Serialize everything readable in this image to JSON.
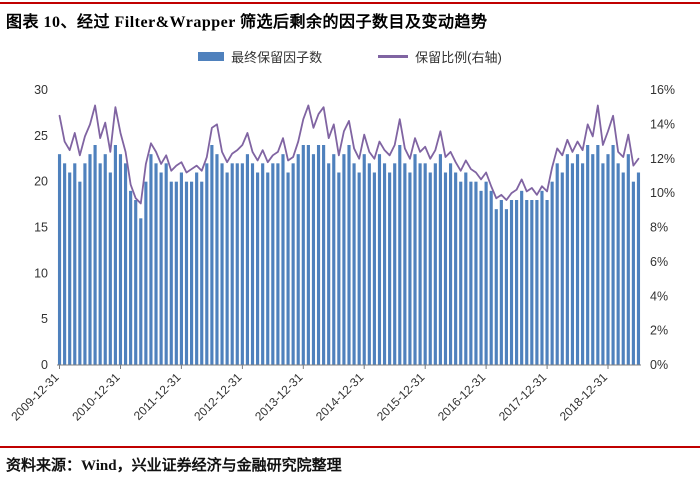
{
  "page": {
    "title": "图表 10、经过 Filter&Wrapper 筛选后剩余的因子数目及变动趋势",
    "source": "资料来源：Wind，兴业证券经济与金融研究院整理",
    "accent_red": "#C00000"
  },
  "chart_data": {
    "type": "bar",
    "title": "经过 Filter&Wrapper 筛选后剩余的因子数目及变动趋势",
    "legend_position": "top",
    "grid": false,
    "left_axis": {
      "min": 0,
      "max": 30,
      "ticks": [
        0,
        5,
        10,
        15,
        20,
        25,
        30
      ]
    },
    "right_axis": {
      "min": 0,
      "max": 16,
      "ticks": [
        0,
        2,
        4,
        6,
        8,
        10,
        12,
        14,
        16
      ],
      "suffix": "%"
    },
    "x_ticks": {
      "indices": [
        0,
        12,
        24,
        36,
        48,
        60,
        72,
        84,
        96,
        108
      ],
      "labels": [
        "2009-12-31",
        "2010-12-31",
        "2011-12-31",
        "2012-12-31",
        "2013-12-31",
        "2014-12-31",
        "2015-12-31",
        "2016-12-31",
        "2017-12-31",
        "2018-12-31"
      ]
    },
    "series": [
      {
        "name": "最终保留因子数",
        "type": "bar",
        "axis": "left",
        "color": "#4F81BD",
        "values": [
          23,
          22,
          21,
          22,
          20,
          22,
          23,
          24,
          22,
          23,
          21,
          24,
          23,
          22,
          19,
          18,
          16,
          20,
          23,
          22,
          21,
          22,
          20,
          20,
          21,
          20,
          20,
          21,
          20,
          22,
          24,
          23,
          22,
          21,
          22,
          22,
          22,
          23,
          22,
          21,
          22,
          21,
          22,
          22,
          23,
          21,
          22,
          23,
          24,
          24,
          23,
          24,
          24,
          22,
          23,
          21,
          23,
          24,
          22,
          21,
          23,
          22,
          21,
          23,
          22,
          21,
          22,
          24,
          22,
          21,
          23,
          22,
          22,
          21,
          22,
          23,
          21,
          22,
          21,
          20,
          21,
          20,
          20,
          19,
          20,
          19,
          17,
          18,
          17,
          18,
          18,
          19,
          18,
          18,
          18,
          19,
          18,
          20,
          22,
          21,
          23,
          22,
          23,
          22,
          24,
          23,
          24,
          22,
          23,
          24,
          22,
          21,
          23,
          20,
          21
        ]
      },
      {
        "name": "保留比例(右轴)",
        "type": "line",
        "axis": "right",
        "color": "#8064A2",
        "values": [
          14.5,
          13.0,
          12.5,
          13.5,
          12.2,
          13.3,
          14.0,
          15.1,
          13.2,
          14.1,
          12.4,
          15.0,
          13.5,
          12.4,
          10.5,
          9.7,
          9.4,
          11.7,
          12.9,
          12.4,
          11.7,
          12.2,
          11.3,
          11.6,
          11.8,
          11.2,
          11.4,
          11.6,
          11.3,
          12.1,
          13.8,
          14.0,
          12.4,
          11.8,
          12.3,
          12.5,
          12.8,
          13.5,
          12.4,
          11.9,
          12.5,
          11.8,
          12.2,
          12.4,
          13.2,
          11.9,
          12.1,
          13.0,
          14.3,
          15.1,
          13.8,
          14.6,
          15.0,
          13.2,
          14.0,
          12.2,
          13.6,
          14.2,
          12.6,
          12.0,
          13.4,
          12.4,
          12.0,
          13.0,
          12.5,
          12.2,
          12.8,
          14.3,
          12.6,
          12.0,
          13.2,
          12.4,
          12.7,
          12.0,
          12.5,
          13.6,
          12.1,
          12.4,
          11.8,
          11.3,
          11.9,
          11.4,
          11.2,
          10.8,
          11.2,
          10.4,
          9.7,
          9.9,
          9.6,
          10.0,
          10.2,
          10.8,
          10.1,
          10.3,
          9.9,
          10.4,
          10.1,
          11.5,
          12.6,
          12.2,
          13.1,
          12.4,
          13.0,
          12.5,
          14.0,
          13.3,
          15.1,
          12.8,
          13.6,
          14.5,
          12.4,
          12.1,
          13.4,
          11.6,
          12.0
        ]
      }
    ]
  }
}
